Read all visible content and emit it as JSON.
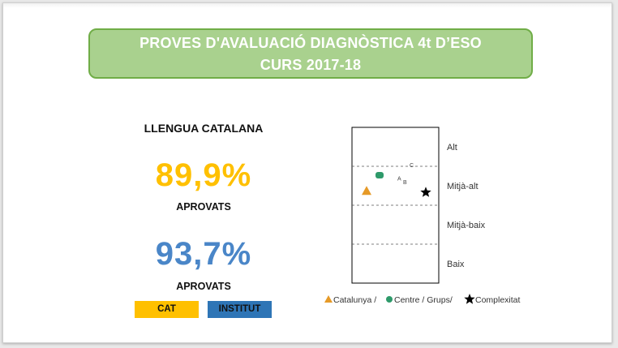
{
  "header": {
    "title_line1": "PROVES D'AVALUACIÓ DIAGNÒSTICA 4t D’ESO",
    "title_line2": "CURS 2017-18"
  },
  "summary": {
    "subject": "LLENGUA CATALANA",
    "cat_percent": "89,9%",
    "cat_label": "APROVATS",
    "inst_percent": "93,7%",
    "inst_label": "APROVATS",
    "tag_cat": "CAT",
    "tag_inst": "INSTITUT"
  },
  "colors": {
    "banner_fill": "#a9d18e",
    "banner_border": "#70ad47",
    "catalunya": "#e69a28",
    "centre": "#2e9a6a",
    "complexitat": "#000000",
    "cat_text": "#ffc000",
    "inst_text": "#4a86c8",
    "tag_cat": "#ffc000",
    "tag_inst": "#2e75b6"
  },
  "chart_data": {
    "type": "scatter",
    "title": "",
    "xlabel": "",
    "ylabel": "",
    "bands": [
      "Alt",
      "Mitjà-alt",
      "Mitjà-baix",
      "Baix"
    ],
    "ylim": [
      0,
      4
    ],
    "grid": true,
    "points": [
      {
        "series": "Catalunya",
        "marker": "triangle",
        "y": 2.37
      },
      {
        "series": "Centre",
        "marker": "circle",
        "y": 2.77
      },
      {
        "series": "Complexitat",
        "marker": "star",
        "y": 2.33
      },
      {
        "label": "A",
        "y": 2.7
      },
      {
        "label": "B",
        "y": 2.6
      },
      {
        "label": "C",
        "y": 3.04
      }
    ],
    "legend_text": {
      "catalunya": "Catalunya /",
      "centre": "Centre / Grups/",
      "complexitat": "Complexitat"
    },
    "legend_placement": "bottom"
  }
}
